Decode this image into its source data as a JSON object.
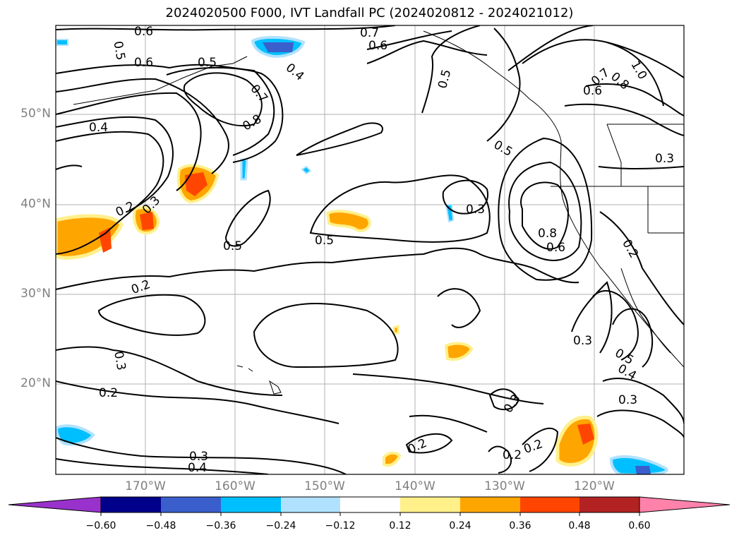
{
  "title": "2024020500 F000, IVT Landfall PC (2024020812 - 2024021012)",
  "lat_labels": [
    "50°N",
    "40°N",
    "30°N",
    "20°N"
  ],
  "lon_labels": [
    "170°W",
    "160°W",
    "150°W",
    "140°W",
    "130°W",
    "120°W"
  ],
  "colorbar": {
    "ticks": [
      "−0.60",
      "−0.48",
      "−0.36",
      "−0.24",
      "−0.12",
      "0.12",
      "0.24",
      "0.36",
      "0.48",
      "0.60"
    ],
    "colors": [
      "#9932cc",
      "#00008b",
      "#3a5fcd",
      "#00bfff",
      "#b0e2ff",
      "#ffffff",
      "#fff08a",
      "#ffa500",
      "#ff4500",
      "#b22222",
      "#ff82ab"
    ]
  },
  "contour_labels": [
    {
      "text": "0.6"
    },
    {
      "text": "0.5"
    },
    {
      "text": "0.6"
    },
    {
      "text": "0.5"
    },
    {
      "text": "0.7"
    },
    {
      "text": "0.6"
    },
    {
      "text": "0.4"
    },
    {
      "text": "0.7"
    },
    {
      "text": "0.8"
    },
    {
      "text": "0.4"
    },
    {
      "text": "0.5"
    },
    {
      "text": "0.5"
    },
    {
      "text": "0.7"
    },
    {
      "text": "0.6"
    },
    {
      "text": "0.8"
    },
    {
      "text": "1.0"
    },
    {
      "text": "0.3"
    },
    {
      "text": "0.2"
    },
    {
      "text": "0.3"
    },
    {
      "text": "0.5"
    },
    {
      "text": "0.5"
    },
    {
      "text": "0.3"
    },
    {
      "text": "0.8"
    },
    {
      "text": "0.6"
    },
    {
      "text": "0.2"
    },
    {
      "text": "0.2"
    },
    {
      "text": "0.3"
    },
    {
      "text": "0.5"
    },
    {
      "text": "0.4"
    },
    {
      "text": "0.3"
    },
    {
      "text": "0.3"
    },
    {
      "text": "0.2"
    },
    {
      "text": "0.3"
    },
    {
      "text": "0.2"
    },
    {
      "text": "0.2"
    },
    {
      "text": "0.2"
    },
    {
      "text": "0.3"
    },
    {
      "text": "0.4"
    }
  ]
}
